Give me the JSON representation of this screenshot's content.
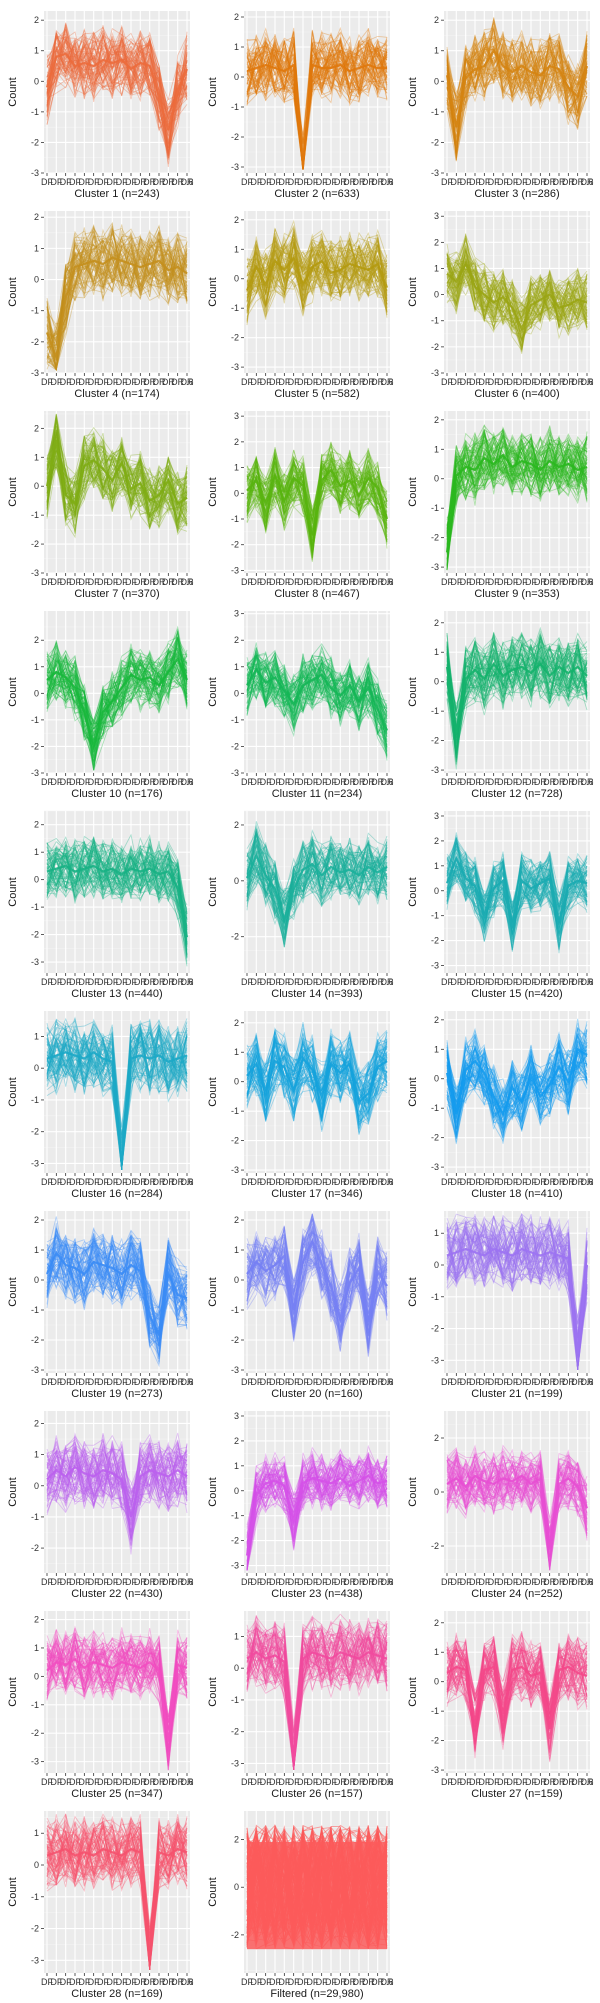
{
  "y_label": "Count",
  "x_ticks": [
    "DF",
    "DF",
    "DF",
    "DF",
    "DF",
    "DF",
    "DF",
    "DF",
    "DF",
    "DF",
    "DR",
    "DR",
    "DR",
    "DR",
    "DR",
    "DR"
  ],
  "x_tick_last": ".6",
  "panels": [
    {
      "title": "Cluster 1 (n=243)",
      "color": "#ec6b3c",
      "yticks": [
        -3,
        -2,
        -1,
        0,
        1,
        2
      ],
      "shape": "c1"
    },
    {
      "title": "Cluster 2 (n=633)",
      "color": "#e0780c",
      "yticks": [
        -3,
        -2,
        -1,
        0,
        1,
        2
      ],
      "shape": "c2"
    },
    {
      "title": "Cluster 3 (n=286)",
      "color": "#d58412",
      "yticks": [
        -3,
        -2,
        -1,
        0,
        1,
        2
      ],
      "shape": "c3"
    },
    {
      "title": "Cluster 4 (n=174)",
      "color": "#c48f1d",
      "yticks": [
        -3,
        -2,
        -1,
        0,
        1,
        2
      ],
      "shape": "c4"
    },
    {
      "title": "Cluster 5 (n=582)",
      "color": "#b49a10",
      "yticks": [
        -3,
        -2,
        -1,
        0,
        1,
        2
      ],
      "shape": "c5"
    },
    {
      "title": "Cluster 6 (n=400)",
      "color": "#9aa514",
      "yticks": [
        -3,
        -2,
        -1,
        0,
        1,
        2,
        3
      ],
      "shape": "c6"
    },
    {
      "title": "Cluster 7 (n=370)",
      "color": "#7fad14",
      "yticks": [
        -3,
        -2,
        -1,
        0,
        1,
        2
      ],
      "shape": "c7"
    },
    {
      "title": "Cluster 8 (n=467)",
      "color": "#58b40f",
      "yticks": [
        -3,
        -2,
        -1,
        0,
        1,
        2,
        3
      ],
      "shape": "c8"
    },
    {
      "title": "Cluster 9 (n=353)",
      "color": "#2ab81f",
      "yticks": [
        -3,
        -2,
        -1,
        0,
        1,
        2
      ],
      "shape": "c9"
    },
    {
      "title": "Cluster 10 (n=176)",
      "color": "#18b83b",
      "yticks": [
        -3,
        -2,
        -1,
        0,
        1,
        2
      ],
      "shape": "c10"
    },
    {
      "title": "Cluster 11 (n=234)",
      "color": "#15b656",
      "yticks": [
        -3,
        -2,
        -1,
        0,
        1,
        2,
        3
      ],
      "shape": "c11"
    },
    {
      "title": "Cluster 12 (n=728)",
      "color": "#14b26c",
      "yticks": [
        -3,
        -2,
        -1,
        0,
        1,
        2
      ],
      "shape": "c12"
    },
    {
      "title": "Cluster 13 (n=440)",
      "color": "#18b184",
      "yticks": [
        -3,
        -2,
        -1,
        0,
        1,
        2
      ],
      "shape": "c13"
    },
    {
      "title": "Cluster 14 (n=393)",
      "color": "#1bb09b",
      "yticks": [
        -2,
        0,
        2
      ],
      "shape": "c14"
    },
    {
      "title": "Cluster 15 (n=420)",
      "color": "#1babb1",
      "yticks": [
        -3,
        -2,
        -1,
        0,
        1,
        2,
        3
      ],
      "shape": "c15"
    },
    {
      "title": "Cluster 16 (n=284)",
      "color": "#1ca8c7",
      "yticks": [
        -3,
        -2,
        -1,
        0,
        1
      ],
      "shape": "c16"
    },
    {
      "title": "Cluster 17 (n=346)",
      "color": "#15a2dc",
      "yticks": [
        -3,
        -2,
        -1,
        0,
        1,
        2
      ],
      "shape": "c17"
    },
    {
      "title": "Cluster 18 (n=410)",
      "color": "#149bee",
      "yticks": [
        -3,
        -2,
        -1,
        0,
        1,
        2
      ],
      "shape": "c18"
    },
    {
      "title": "Cluster 19 (n=273)",
      "color": "#3b8cf5",
      "yticks": [
        -3,
        -2,
        -1,
        0,
        1,
        2
      ],
      "shape": "c19"
    },
    {
      "title": "Cluster 20 (n=160)",
      "color": "#7680f4",
      "yticks": [
        -3,
        -2,
        -1,
        0,
        1,
        2
      ],
      "shape": "c20"
    },
    {
      "title": "Cluster 21 (n=199)",
      "color": "#9c73f2",
      "yticks": [
        -3,
        -2,
        -1,
        0,
        1
      ],
      "shape": "c21"
    },
    {
      "title": "Cluster 22 (n=430)",
      "color": "#bb61ee",
      "yticks": [
        -2,
        -1,
        0,
        1,
        2
      ],
      "shape": "c22"
    },
    {
      "title": "Cluster 23 (n=438)",
      "color": "#d551e8",
      "yticks": [
        -3,
        -2,
        -1,
        0,
        1,
        2,
        3
      ],
      "shape": "c23"
    },
    {
      "title": "Cluster 24 (n=252)",
      "color": "#e74fd3",
      "yticks": [
        -2,
        0,
        2
      ],
      "shape": "c24"
    },
    {
      "title": "Cluster 25 (n=347)",
      "color": "#f24ec1",
      "yticks": [
        -3,
        -2,
        -1,
        0,
        1,
        2
      ],
      "shape": "c25"
    },
    {
      "title": "Cluster 26 (n=157)",
      "color": "#f14a9f",
      "yticks": [
        -3,
        -2,
        -1,
        0,
        1
      ],
      "shape": "c26"
    },
    {
      "title": "Cluster 27 (n=159)",
      "color": "#f4488a",
      "yticks": [
        -3,
        -2,
        -1,
        0,
        1,
        2
      ],
      "shape": "c27"
    },
    {
      "title": "Cluster 28 (n=169)",
      "color": "#f5526e",
      "yticks": [
        -3,
        -2,
        -1,
        0,
        1
      ],
      "shape": "c28"
    },
    {
      "title": "Filtered (n=29,980)",
      "color": "#fb5a5a",
      "yticks": [
        -2,
        0,
        2
      ],
      "shape": "filtered"
    }
  ],
  "chart_data": {
    "type": "line",
    "y_label": "Count",
    "grid": true,
    "n_timepoints": 16,
    "panels": [
      {
        "title": "Cluster 1 (n=243)",
        "ylim": [
          -3,
          2.3
        ],
        "center": [
          -0.2,
          0.8,
          0.9,
          0.5,
          0.6,
          0.5,
          0.7,
          0.6,
          0.7,
          0.4,
          0.6,
          0.5,
          -0.5,
          -1.6,
          -0.3,
          0.4
        ]
      },
      {
        "title": "Cluster 2 (n=633)",
        "ylim": [
          -3.2,
          2.2
        ],
        "center": [
          0.2,
          0.3,
          0.4,
          0.3,
          0.2,
          0.4,
          -3.0,
          0.4,
          0.3,
          0.3,
          0.4,
          0.2,
          0.3,
          0.4,
          0.3,
          0.3
        ]
      },
      {
        "title": "Cluster 3 (n=286)",
        "ylim": [
          -3,
          2.3
        ],
        "center": [
          0.2,
          -1.5,
          0.1,
          0.4,
          0.5,
          1.0,
          0.5,
          0.3,
          0.5,
          0.3,
          0.2,
          0.5,
          0.4,
          -0.2,
          -0.5,
          0.5
        ]
      },
      {
        "title": "Cluster 4 (n=174)",
        "ylim": [
          -3,
          2.2
        ],
        "center": [
          -1.7,
          -2.5,
          -0.6,
          0.4,
          0.5,
          0.6,
          0.5,
          0.7,
          0.6,
          0.5,
          0.4,
          0.5,
          0.6,
          0.3,
          0.4,
          0.2
        ]
      },
      {
        "title": "Cluster 5 (n=582)",
        "ylim": [
          -3.2,
          2.3
        ],
        "center": [
          -0.4,
          0.4,
          -0.2,
          0.6,
          0.3,
          0.7,
          -0.2,
          0.4,
          0.6,
          0.2,
          0.3,
          0.5,
          0.4,
          0.3,
          0.5,
          -0.3
        ]
      },
      {
        "title": "Cluster 6 (n=400)",
        "ylim": [
          -3,
          3.2
        ],
        "center": [
          0.8,
          0.5,
          1.2,
          0.3,
          0.0,
          -0.3,
          -0.1,
          -0.5,
          -1.3,
          -0.4,
          -0.2,
          0.0,
          -0.5,
          -0.4,
          -0.2,
          -0.3
        ]
      },
      {
        "title": "Cluster 7 (n=370)",
        "ylim": [
          -3,
          2.6
        ],
        "center": [
          0.0,
          1.6,
          -0.3,
          -0.6,
          0.7,
          0.9,
          0.6,
          0.2,
          0.8,
          -0.1,
          0.1,
          -0.5,
          -0.3,
          0.2,
          -0.6,
          -0.4
        ]
      },
      {
        "title": "Cluster 8 (n=467)",
        "ylim": [
          -3.1,
          3.2
        ],
        "center": [
          0.1,
          0.5,
          -0.4,
          0.7,
          -0.3,
          0.6,
          0.3,
          -1.6,
          0.5,
          0.9,
          0.3,
          0.5,
          -0.1,
          0.6,
          0.2,
          -1.0
        ]
      },
      {
        "title": "Cluster 9 (n=353)",
        "ylim": [
          -3.2,
          2.3
        ],
        "center": [
          -2.5,
          0.1,
          0.4,
          0.3,
          0.7,
          0.5,
          0.8,
          0.4,
          0.6,
          0.5,
          0.3,
          0.6,
          0.4,
          0.5,
          0.3,
          0.4
        ]
      },
      {
        "title": "Cluster 10 (n=176)",
        "ylim": [
          -3,
          3.1
        ],
        "center": [
          0.5,
          0.8,
          0.6,
          0.2,
          -0.7,
          -2.0,
          -0.7,
          -0.3,
          0.2,
          0.7,
          0.5,
          0.6,
          0.3,
          0.8,
          1.3,
          0.5
        ]
      },
      {
        "title": "Cluster 11 (n=234)",
        "ylim": [
          -3,
          3.1
        ],
        "center": [
          0.3,
          0.9,
          0.4,
          0.6,
          0.1,
          -0.4,
          0.3,
          0.5,
          0.7,
          0.2,
          -0.1,
          0.3,
          -0.3,
          0.2,
          -0.6,
          -1.4
        ]
      },
      {
        "title": "Cluster 12 (n=728)",
        "ylim": [
          -3.1,
          2.4
        ],
        "center": [
          0.5,
          -1.8,
          0.1,
          0.4,
          0.1,
          0.6,
          0.2,
          0.4,
          0.5,
          0.3,
          0.6,
          0.2,
          0.5,
          0.3,
          0.5,
          0.2
        ]
      },
      {
        "title": "Cluster 13 (n=440)",
        "ylim": [
          -3.4,
          2.5
        ],
        "center": [
          0.3,
          0.4,
          0.5,
          0.3,
          0.4,
          0.5,
          0.3,
          0.4,
          0.2,
          0.4,
          0.3,
          0.4,
          0.2,
          0.3,
          -0.3,
          -2.1
        ]
      },
      {
        "title": "Cluster 14 (n=393)",
        "ylim": [
          -3.3,
          2.5
        ],
        "center": [
          0.1,
          0.9,
          0.2,
          -0.3,
          -1.4,
          -0.3,
          0.4,
          0.6,
          0.2,
          0.5,
          0.3,
          0.4,
          0.2,
          0.5,
          0.3,
          0.5
        ]
      },
      {
        "title": "Cluster 15 (n=420)",
        "ylim": [
          -3.3,
          3.2
        ],
        "center": [
          0.3,
          1.3,
          0.5,
          0.2,
          -1.0,
          0.1,
          0.4,
          -1.5,
          0.4,
          0.1,
          0.3,
          0.5,
          -1.3,
          0.2,
          0.4,
          0.3
        ]
      },
      {
        "title": "Cluster 16 (n=284)",
        "ylim": [
          -3.3,
          1.8
        ],
        "center": [
          0.3,
          0.4,
          0.5,
          0.4,
          0.3,
          0.5,
          0.3,
          0.2,
          -3.0,
          0.3,
          0.4,
          0.3,
          0.4,
          0.2,
          0.3,
          0.4
        ]
      },
      {
        "title": "Cluster 17 (n=346)",
        "ylim": [
          -3.1,
          2.4
        ],
        "center": [
          0.2,
          0.6,
          -0.4,
          0.7,
          0.5,
          -0.3,
          0.8,
          0.4,
          -0.5,
          0.6,
          0.3,
          0.6,
          -0.7,
          -0.4,
          0.5,
          0.7
        ]
      },
      {
        "title": "Cluster 18 (n=410)",
        "ylim": [
          -3.2,
          2.3
        ],
        "center": [
          0.2,
          -1.2,
          0.3,
          0.6,
          0.2,
          -0.6,
          -1.2,
          -0.3,
          -0.8,
          0.1,
          -0.6,
          -0.2,
          0.4,
          -0.1,
          1.0,
          0.8
        ]
      },
      {
        "title": "Cluster 19 (n=273)",
        "ylim": [
          -3.1,
          2.3
        ],
        "center": [
          0.2,
          0.9,
          0.5,
          0.4,
          0.2,
          0.6,
          0.5,
          0.4,
          0.2,
          0.5,
          0.3,
          -1.2,
          -1.8,
          0.2,
          -0.5,
          -0.6
        ]
      },
      {
        "title": "Cluster 20 (n=160)",
        "ylim": [
          -3.1,
          2.3
        ],
        "center": [
          0.2,
          0.6,
          0.3,
          0.5,
          0.8,
          -1.0,
          0.6,
          1.3,
          0.5,
          -0.2,
          -1.3,
          -0.1,
          0.4,
          -1.4,
          0.3,
          -0.2
        ]
      },
      {
        "title": "Cluster 21 (n=199)",
        "ylim": [
          -3.4,
          1.7
        ],
        "center": [
          0.3,
          0.4,
          0.5,
          0.4,
          0.3,
          0.5,
          0.4,
          0.3,
          0.5,
          0.4,
          0.3,
          0.4,
          0.3,
          0.2,
          -2.8,
          0.0
        ]
      },
      {
        "title": "Cluster 22 (n=430)",
        "ylim": [
          -2.8,
          2.4
        ],
        "center": [
          0.2,
          0.5,
          0.3,
          0.6,
          0.4,
          0.3,
          0.5,
          0.4,
          0.2,
          -1.0,
          0.3,
          0.5,
          0.4,
          0.3,
          0.5,
          0.3
        ]
      },
      {
        "title": "Cluster 23 (n=438)",
        "ylim": [
          -3.3,
          3.2
        ],
        "center": [
          -2.6,
          -0.2,
          0.3,
          0.4,
          0.2,
          -1.2,
          0.3,
          0.5,
          0.4,
          0.3,
          0.5,
          0.2,
          0.4,
          0.6,
          0.3,
          0.4
        ]
      },
      {
        "title": "Cluster 24 (n=252)",
        "ylim": [
          -3.0,
          3.0
        ],
        "center": [
          0.3,
          0.5,
          0.2,
          0.6,
          0.4,
          0.3,
          0.5,
          0.4,
          0.6,
          0.3,
          0.5,
          -2.1,
          0.3,
          0.5,
          0.2,
          -0.6
        ]
      },
      {
        "title": "Cluster 25 (n=347)",
        "ylim": [
          -3.4,
          2.3
        ],
        "center": [
          0.2,
          0.5,
          0.4,
          0.6,
          0.3,
          0.5,
          0.4,
          0.3,
          0.5,
          0.4,
          0.3,
          0.5,
          0.2,
          -2.3,
          0.4,
          0.3
        ]
      },
      {
        "title": "Cluster 26 (n=157)",
        "ylim": [
          -3.3,
          1.8
        ],
        "center": [
          0.3,
          0.5,
          0.3,
          0.4,
          0.2,
          -2.9,
          0.3,
          0.5,
          0.4,
          0.3,
          0.5,
          0.4,
          0.3,
          0.5,
          0.4,
          0.3
        ]
      },
      {
        "title": "Cluster 27 (n=159)",
        "ylim": [
          -3.1,
          2.4
        ],
        "center": [
          0.3,
          0.5,
          0.4,
          -1.4,
          0.4,
          0.5,
          -1.1,
          0.4,
          0.5,
          0.2,
          0.3,
          -1.6,
          0.4,
          0.5,
          0.3,
          0.2
        ]
      },
      {
        "title": "Cluster 28 (n=169)",
        "ylim": [
          -3.4,
          1.7
        ],
        "center": [
          0.3,
          0.4,
          0.5,
          0.3,
          0.4,
          0.3,
          0.5,
          0.4,
          0.3,
          0.5,
          0.4,
          -3.0,
          0.4,
          0.3,
          0.5,
          0.4
        ]
      },
      {
        "title": "Filtered (n=29,980)",
        "ylim": [
          -3.6,
          3.2
        ],
        "center": [
          0,
          0,
          0,
          0,
          0,
          0,
          0,
          0,
          0,
          0,
          0,
          0,
          0,
          0,
          0,
          0
        ]
      }
    ]
  }
}
